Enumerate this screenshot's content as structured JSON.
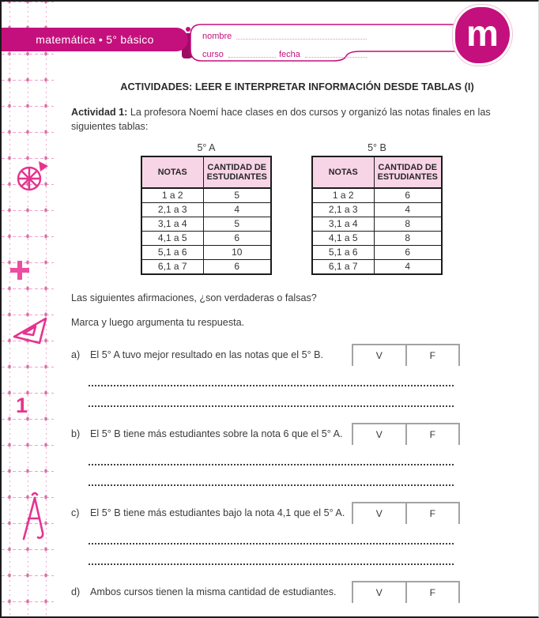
{
  "page": {
    "banner_text": "matemática  •  5° básico",
    "logo_letter": "m",
    "header_fields": {
      "nombre": "nombre",
      "curso": "curso",
      "fecha": "fecha"
    },
    "title": "ACTIVIDADES: LEER E INTERPRETAR INFORMACIÓN DESDE TABLAS (I)",
    "activity_label": "Actividad 1:",
    "activity_text": " La profesora Noemí hace clases en dos cursos y organizó las notas finales en las siguientes tablas:",
    "question_intro": "Las siguientes afirmaciones, ¿son verdaderas o falsas?",
    "instruction": "Marca y luego argumenta tu respuesta.",
    "true_label": "V",
    "false_label": "F",
    "chapter_number": "1"
  },
  "tables": [
    {
      "caption": "5° A",
      "headers": [
        "NOTAS",
        "CANTIDAD DE ESTUDIANTES"
      ],
      "rows": [
        [
          "1 a 2",
          "5"
        ],
        [
          "2,1 a 3",
          "4"
        ],
        [
          "3,1 a 4",
          "5"
        ],
        [
          "4,1 a 5",
          "6"
        ],
        [
          "5,1 a 6",
          "10"
        ],
        [
          "6,1 a 7",
          "6"
        ]
      ]
    },
    {
      "caption": "5° B",
      "headers": [
        "NOTAS",
        "CANTIDAD DE ESTUDIANTES"
      ],
      "rows": [
        [
          "1 a 2",
          "6"
        ],
        [
          "2,1 a 3",
          "4"
        ],
        [
          "3,1 a 4",
          "8"
        ],
        [
          "4,1 a 5",
          "8"
        ],
        [
          "5,1 a 6",
          "6"
        ],
        [
          "6,1 a 7",
          "4"
        ]
      ]
    }
  ],
  "questions": [
    {
      "letter": "a)",
      "text": "El 5° A tuvo mejor resultado en las notas que el 5° B.",
      "answer_lines": 2
    },
    {
      "letter": "b)",
      "text": "El 5° B tiene más estudiantes sobre la nota 6 que el 5° A.",
      "answer_lines": 2
    },
    {
      "letter": "c)",
      "text": "El 5° B tiene más estudiantes bajo la nota 4,1 que el 5° A.",
      "answer_lines": 2
    },
    {
      "letter": "d)",
      "text": "Ambos cursos tienen la misma cantidad de estudiantes.",
      "answer_lines": 1
    }
  ],
  "colors": {
    "brand": "#c4107c",
    "icon_pink": "#e5338f",
    "table_header_bg": "#f8d5e6",
    "grid_line": "#f0a3c8",
    "grid_square": "#d873a8",
    "vf_border": "#a3a3a3"
  },
  "margin_icons": [
    "pie-wheel-icon",
    "plus-icon",
    "triangle-ruler-icon",
    "compass-icon"
  ]
}
